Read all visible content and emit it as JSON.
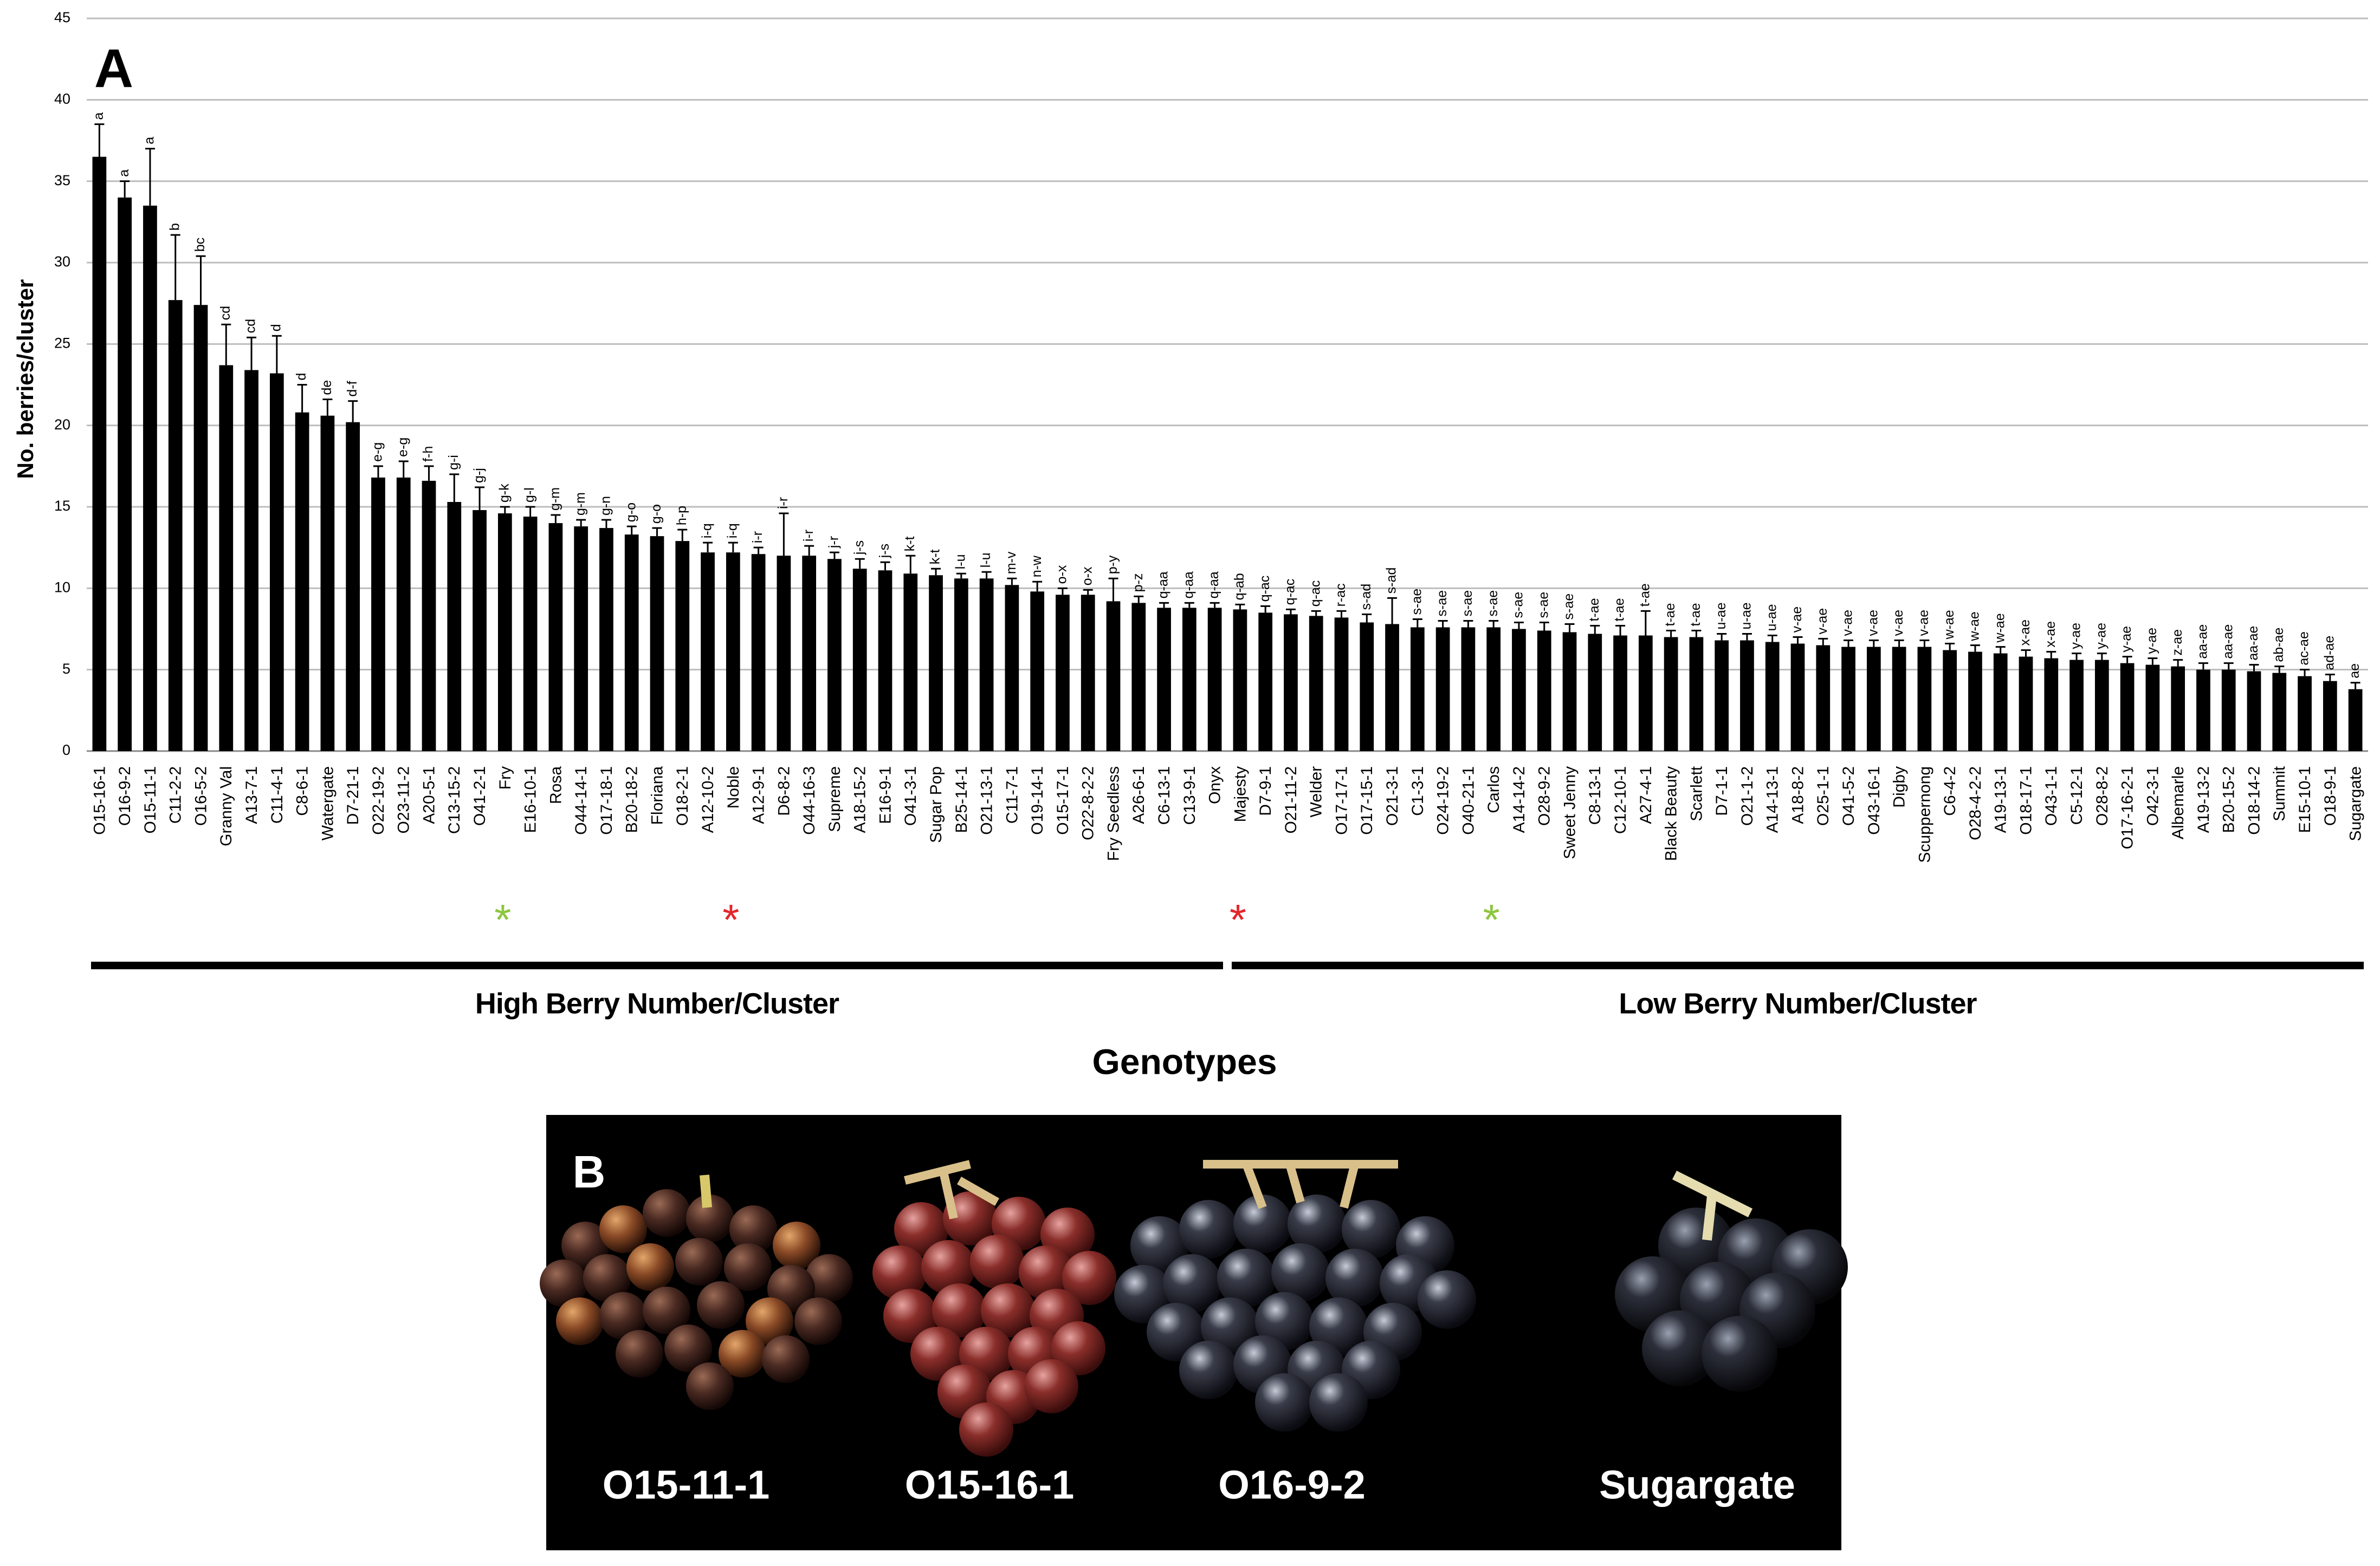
{
  "chart_data": {
    "type": "bar",
    "panel_label": "A",
    "ylabel": "No. berries/cluster",
    "xlabel": "Genotypes",
    "ylim": [
      0,
      45
    ],
    "yticks": [
      0,
      5,
      10,
      15,
      20,
      25,
      30,
      35,
      40,
      45
    ],
    "grid": true,
    "color": "#000000",
    "categories": [
      "O15-16-1",
      "O16-9-2",
      "O15-11-1",
      "C11-2-2",
      "O16-5-2",
      "Granny Val",
      "A13-7-1",
      "C11-4-1",
      "C8-6-1",
      "Watergate",
      "D7-21-1",
      "O22-19-2",
      "O23-11-2",
      "A20-5-1",
      "C13-15-2",
      "O41-2-1",
      "Fry",
      "E16-10-1",
      "Rosa",
      "O44-14-1",
      "O17-18-1",
      "B20-18-2",
      "Floriana",
      "O18-2-1",
      "A12-10-2",
      "Noble",
      "A12-9-1",
      "D6-8-2",
      "O44-16-3",
      "Supreme",
      "A18-15-2",
      "E16-9-1",
      "O41-3-1",
      "Sugar Pop",
      "B25-14-1",
      "O21-13-1",
      "C11-7-1",
      "O19-14-1",
      "O15-17-1",
      "O22-8-2-2",
      "Fry Seedless",
      "A26-6-1",
      "C6-13-1",
      "C13-9-1",
      "Onyx",
      "Majesty",
      "D7-9-1",
      "O21-11-2",
      "Welder",
      "O17-17-1",
      "O17-15-1",
      "O21-3-1",
      "C1-3-1",
      "O24-19-2",
      "O40-21-1",
      "Carlos",
      "A14-14-2",
      "O28-9-2",
      "Sweet Jenny",
      "C8-13-1",
      "C12-10-1",
      "A27-4-1",
      "Black Beauty",
      "Scarlett",
      "D7-1-1",
      "O21-1-2",
      "A14-13-1",
      "A18-8-2",
      "O25-1-1",
      "O41-5-2",
      "O43-16-1",
      "Digby",
      "Scuppernong",
      "C6-4-2",
      "O28-4-2-2",
      "A19-13-1",
      "O18-17-1",
      "O43-1-1",
      "C5-12-1",
      "O28-8-2",
      "O17-16-2-1",
      "O42-3-1",
      "Albemarle",
      "A19-13-2",
      "B20-15-2",
      "O18-14-2",
      "Summit",
      "E15-10-1",
      "O18-9-1",
      "Sugargate"
    ],
    "values": [
      36.5,
      34,
      33.5,
      27.7,
      27.4,
      23.7,
      23.4,
      23.2,
      20.8,
      20.6,
      20.2,
      16.8,
      16.8,
      16.6,
      15.3,
      14.8,
      14.6,
      14.4,
      14,
      13.8,
      13.7,
      13.3,
      13.2,
      12.9,
      12.2,
      12.2,
      12.1,
      12,
      12,
      11.8,
      11.2,
      11.1,
      10.9,
      10.8,
      10.6,
      10.6,
      10.2,
      9.8,
      9.6,
      9.6,
      9.2,
      9.1,
      8.8,
      8.8,
      8.8,
      8.7,
      8.5,
      8.4,
      8.3,
      8.2,
      7.9,
      7.8,
      7.6,
      7.6,
      7.6,
      7.6,
      7.5,
      7.4,
      7.3,
      7.2,
      7.1,
      7.1,
      7,
      7,
      6.8,
      6.8,
      6.7,
      6.6,
      6.5,
      6.4,
      6.4,
      6.4,
      6.4,
      6.2,
      6.1,
      6,
      5.8,
      5.7,
      5.6,
      5.6,
      5.4,
      5.3,
      5.2,
      5,
      5,
      4.9,
      4.8,
      4.6,
      4.3,
      3.8
    ],
    "errors": [
      2,
      1,
      3.5,
      4,
      3,
      2.5,
      2,
      2.3,
      1.7,
      1,
      1.3,
      0.7,
      1,
      0.9,
      1.7,
      1.4,
      0.4,
      0.6,
      0.5,
      0.4,
      0.5,
      0.5,
      0.5,
      0.7,
      0.6,
      0.6,
      0.4,
      2.6,
      0.6,
      0.4,
      0.6,
      0.5,
      1.1,
      0.4,
      0.3,
      0.4,
      0.4,
      0.6,
      0.4,
      0.3,
      1.4,
      0.4,
      0.3,
      0.3,
      0.3,
      0.3,
      0.4,
      0.3,
      0.3,
      0.4,
      0.5,
      1.6,
      0.5,
      0.4,
      0.4,
      0.4,
      0.4,
      0.5,
      0.5,
      0.5,
      0.6,
      1.5,
      0.4,
      0.4,
      0.4,
      0.4,
      0.4,
      0.4,
      0.4,
      0.4,
      0.4,
      0.4,
      0.4,
      0.4,
      0.4,
      0.4,
      0.4,
      0.4,
      0.4,
      0.4,
      0.4,
      0.4,
      0.4,
      0.4,
      0.4,
      0.4,
      0.4,
      0.4,
      0.4,
      0.4
    ],
    "letters": [
      "a",
      "a",
      "a",
      "b",
      "bc",
      "cd",
      "cd",
      "d",
      "d",
      "de",
      "d-f",
      "e-g",
      "e-g",
      "f-h",
      "g-i",
      "g-j",
      "g-k",
      "g-l",
      "g-m",
      "g-m",
      "g-n",
      "g-o",
      "g-o",
      "h-p",
      "i-q",
      "i-q",
      "i-r",
      "i-r",
      "i-r",
      "j-r",
      "j-s",
      "j-s",
      "k-t",
      "k-t",
      "l-u",
      "l-u",
      "m-v",
      "n-w",
      "o-x",
      "o-x",
      "p-y",
      "p-z",
      "q-aa",
      "q-aa",
      "q-aa",
      "q-ab",
      "q-ac",
      "q-ac",
      "q-ac",
      "r-ac",
      "s-ad",
      "s-ad",
      "s-ae",
      "s-ae",
      "s-ae",
      "s-ae",
      "s-ae",
      "s-ae",
      "s-ae",
      "t-ae",
      "t-ae",
      "t-ae",
      "t-ae",
      "t-ae",
      "u-ae",
      "u-ae",
      "u-ae",
      "v-ae",
      "v-ae",
      "v-ae",
      "v-ae",
      "v-ae",
      "v-ae",
      "w-ae",
      "w-ae",
      "w-ae",
      "x-ae",
      "x-ae",
      "y-ae",
      "y-ae",
      "y-ae",
      "y-ae",
      "z-ae",
      "aa-ae",
      "aa-ae",
      "aa-ae",
      "ab-ae",
      "ac-ae",
      "ad-ae",
      "ae"
    ],
    "asterisks": [
      {
        "label": "*",
        "at": "Fry",
        "color": "#8dc63f"
      },
      {
        "label": "*",
        "at": "Noble",
        "color": "#e3262b"
      },
      {
        "label": "*",
        "at": "Majesty",
        "color": "#e3262b"
      },
      {
        "label": "*",
        "at": "Carlos",
        "color": "#8dc63f"
      }
    ],
    "groups": [
      {
        "label": "High Berry Number/Cluster",
        "from": "O15-16-1",
        "to": "Onyx"
      },
      {
        "label": "Low Berry Number/Cluster",
        "from": "Majesty",
        "to": "Sugargate"
      }
    ]
  },
  "photo": {
    "panel_label": "B",
    "captions": [
      "O15-11-1",
      "O15-16-1",
      "O16-9-2",
      "Sugargate"
    ]
  }
}
